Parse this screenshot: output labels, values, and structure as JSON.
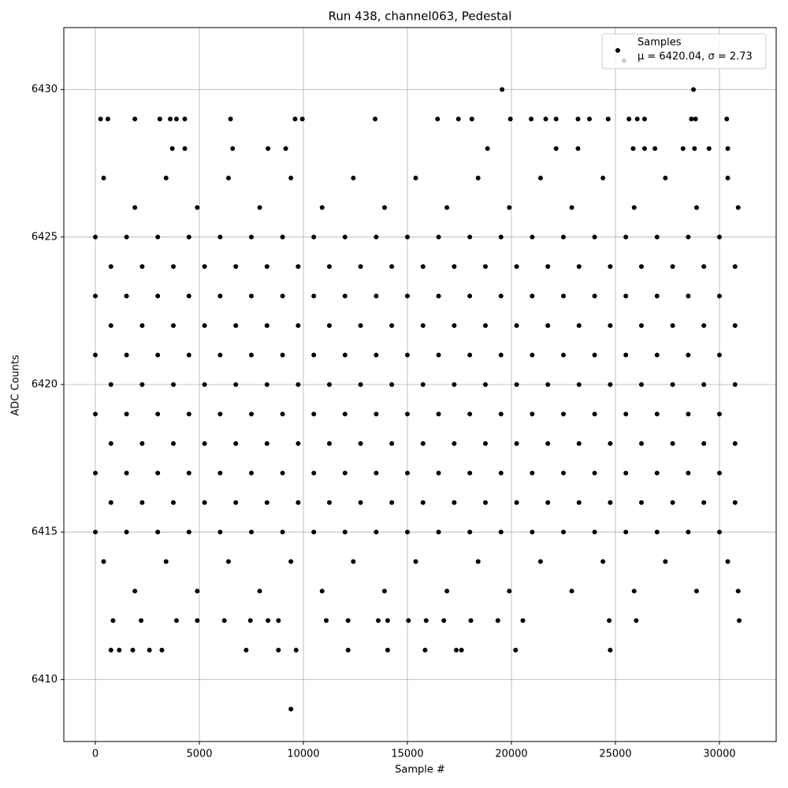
{
  "chart_data": {
    "type": "scatter",
    "title": "Run 438, channel063, Pedestal",
    "xlabel": "Sample #",
    "ylabel": "ADC Counts",
    "annotation": "μ = 6420.04, σ = 2.73",
    "legend": "upper right",
    "grid": true,
    "xlim": [
      -1515,
      32727
    ],
    "ylim": [
      6407.9,
      6432.1
    ],
    "xticks": [
      0,
      5000,
      10000,
      15000,
      20000,
      25000,
      30000
    ],
    "yticks": [
      6410,
      6415,
      6420,
      6425,
      6430
    ],
    "series": [
      {
        "name": "Samples",
        "color": "#000000",
        "x": [
          9400,
          19550,
          28750,
          250,
          600,
          1900,
          3100,
          3600,
          3900,
          4300,
          6500,
          9600,
          9950,
          13450,
          16450,
          17450,
          18100,
          19950,
          20950,
          21650,
          22150,
          23200,
          23750,
          24650,
          25650,
          26050,
          26400,
          28650,
          28850,
          30350,
          3700,
          4300,
          6600,
          8300,
          9150,
          18850,
          22150,
          23200,
          25850,
          26400,
          26900,
          28250,
          28800,
          29500,
          30400,
          750,
          1150,
          1800,
          2600,
          3200,
          7250,
          8800,
          9650,
          12150,
          14050,
          15850,
          17350,
          17600,
          20200,
          24750,
          850,
          2200,
          3900,
          4900,
          6200,
          7450,
          8300,
          8800,
          11100,
          12150,
          13600,
          14050,
          15050,
          15900,
          16750,
          18050,
          19350,
          20550,
          24700,
          26000,
          30950,
          400,
          3400,
          6400,
          9400,
          12400,
          15400,
          18400,
          21400,
          24400,
          27400,
          30400,
          1900,
          4900,
          7900,
          10900,
          13900,
          16900,
          19900,
          22900,
          25900,
          28900,
          30900,
          0,
          1500,
          3000,
          4500,
          6000,
          7500,
          9000,
          10500,
          12000,
          13500,
          15000,
          16500,
          18000,
          19500,
          21000,
          22500,
          24000,
          25500,
          27000,
          28500,
          30000,
          750,
          2250,
          3750,
          5250,
          6750,
          8250,
          9750,
          11250,
          12750,
          14250,
          15750,
          17250,
          18750,
          20250,
          21750,
          23250,
          24750,
          26250,
          27750,
          29250,
          30750,
          0,
          1500,
          3000,
          4500,
          6000,
          7500,
          9000,
          10500,
          12000,
          13500,
          15000,
          16500,
          18000,
          19500,
          21000,
          22500,
          24000,
          25500,
          27000,
          28500,
          30000,
          750,
          2250,
          3750,
          5250,
          6750,
          8250,
          9750,
          11250,
          12750,
          14250,
          15750,
          17250,
          18750,
          20250,
          21750,
          23250,
          24750,
          26250,
          27750,
          29250,
          30750,
          0,
          1500,
          3000,
          4500,
          6000,
          7500,
          9000,
          10500,
          12000,
          13500,
          15000,
          16500,
          18000,
          19500,
          21000,
          22500,
          24000,
          25500,
          27000,
          28500,
          30000,
          750,
          2250,
          3750,
          5250,
          6750,
          8250,
          9750,
          11250,
          12750,
          14250,
          15750,
          17250,
          18750,
          20250,
          21750,
          23250,
          24750,
          26250,
          27750,
          29250,
          30750,
          0,
          1500,
          3000,
          4500,
          6000,
          7500,
          9000,
          10500,
          12000,
          13500,
          15000,
          16500,
          18000,
          19500,
          21000,
          22500,
          24000,
          25500,
          27000,
          28500,
          30000,
          750,
          2250,
          3750,
          5250,
          6750,
          8250,
          9750,
          11250,
          12750,
          14250,
          15750,
          17250,
          18750,
          20250,
          21750,
          23250,
          24750,
          26250,
          27750,
          29250,
          30750,
          0,
          1500,
          3000,
          4500,
          6000,
          7500,
          9000,
          10500,
          12000,
          13500,
          15000,
          16500,
          18000,
          19500,
          21000,
          22500,
          24000,
          25500,
          27000,
          28500,
          30000,
          750,
          2250,
          3750,
          5250,
          6750,
          8250,
          9750,
          11250,
          12750,
          14250,
          15750,
          17250,
          18750,
          20250,
          21750,
          23250,
          24750,
          26250,
          27750,
          29250,
          30750,
          0,
          1500,
          3000,
          4500,
          6000,
          7500,
          9000,
          10500,
          12000,
          13500,
          15000,
          16500,
          18000,
          19500,
          21000,
          22500,
          24000,
          25500,
          27000,
          28500,
          30000,
          400,
          3400,
          6400,
          9400,
          12400,
          15400,
          18400,
          21400,
          24400,
          27400,
          30400,
          1900,
          4900,
          7900,
          10900,
          13900,
          16900,
          19900,
          22900,
          25900,
          28900,
          30900
        ],
        "values": [
          6409,
          6430,
          6430,
          6429,
          6429,
          6429,
          6429,
          6429,
          6429,
          6429,
          6429,
          6429,
          6429,
          6429,
          6429,
          6429,
          6429,
          6429,
          6429,
          6429,
          6429,
          6429,
          6429,
          6429,
          6429,
          6429,
          6429,
          6429,
          6429,
          6429,
          6428,
          6428,
          6428,
          6428,
          6428,
          6428,
          6428,
          6428,
          6428,
          6428,
          6428,
          6428,
          6428,
          6428,
          6428,
          6411,
          6411,
          6411,
          6411,
          6411,
          6411,
          6411,
          6411,
          6411,
          6411,
          6411,
          6411,
          6411,
          6411,
          6411,
          6412,
          6412,
          6412,
          6412,
          6412,
          6412,
          6412,
          6412,
          6412,
          6412,
          6412,
          6412,
          6412,
          6412,
          6412,
          6412,
          6412,
          6412,
          6412,
          6412,
          6412,
          6427,
          6427,
          6427,
          6427,
          6427,
          6427,
          6427,
          6427,
          6427,
          6427,
          6427,
          6426,
          6426,
          6426,
          6426,
          6426,
          6426,
          6426,
          6426,
          6426,
          6426,
          6426,
          6425,
          6425,
          6425,
          6425,
          6425,
          6425,
          6425,
          6425,
          6425,
          6425,
          6425,
          6425,
          6425,
          6425,
          6425,
          6425,
          6425,
          6425,
          6425,
          6425,
          6425,
          6424,
          6424,
          6424,
          6424,
          6424,
          6424,
          6424,
          6424,
          6424,
          6424,
          6424,
          6424,
          6424,
          6424,
          6424,
          6424,
          6424,
          6424,
          6424,
          6424,
          6424,
          6423,
          6423,
          6423,
          6423,
          6423,
          6423,
          6423,
          6423,
          6423,
          6423,
          6423,
          6423,
          6423,
          6423,
          6423,
          6423,
          6423,
          6423,
          6423,
          6423,
          6423,
          6422,
          6422,
          6422,
          6422,
          6422,
          6422,
          6422,
          6422,
          6422,
          6422,
          6422,
          6422,
          6422,
          6422,
          6422,
          6422,
          6422,
          6422,
          6422,
          6422,
          6422,
          6421,
          6421,
          6421,
          6421,
          6421,
          6421,
          6421,
          6421,
          6421,
          6421,
          6421,
          6421,
          6421,
          6421,
          6421,
          6421,
          6421,
          6421,
          6421,
          6421,
          6421,
          6420,
          6420,
          6420,
          6420,
          6420,
          6420,
          6420,
          6420,
          6420,
          6420,
          6420,
          6420,
          6420,
          6420,
          6420,
          6420,
          6420,
          6420,
          6420,
          6420,
          6420,
          6419,
          6419,
          6419,
          6419,
          6419,
          6419,
          6419,
          6419,
          6419,
          6419,
          6419,
          6419,
          6419,
          6419,
          6419,
          6419,
          6419,
          6419,
          6419,
          6419,
          6419,
          6418,
          6418,
          6418,
          6418,
          6418,
          6418,
          6418,
          6418,
          6418,
          6418,
          6418,
          6418,
          6418,
          6418,
          6418,
          6418,
          6418,
          6418,
          6418,
          6418,
          6418,
          6417,
          6417,
          6417,
          6417,
          6417,
          6417,
          6417,
          6417,
          6417,
          6417,
          6417,
          6417,
          6417,
          6417,
          6417,
          6417,
          6417,
          6417,
          6417,
          6417,
          6417,
          6416,
          6416,
          6416,
          6416,
          6416,
          6416,
          6416,
          6416,
          6416,
          6416,
          6416,
          6416,
          6416,
          6416,
          6416,
          6416,
          6416,
          6416,
          6416,
          6416,
          6416,
          6415,
          6415,
          6415,
          6415,
          6415,
          6415,
          6415,
          6415,
          6415,
          6415,
          6415,
          6415,
          6415,
          6415,
          6415,
          6415,
          6415,
          6415,
          6415,
          6415,
          6415,
          6414,
          6414,
          6414,
          6414,
          6414,
          6414,
          6414,
          6414,
          6414,
          6414,
          6414,
          6413,
          6413,
          6413,
          6413,
          6413,
          6413,
          6413,
          6413,
          6413,
          6413,
          6413
        ]
      }
    ]
  }
}
